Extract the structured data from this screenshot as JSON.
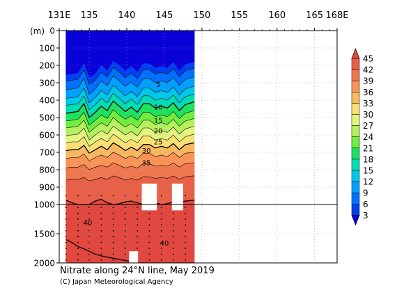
{
  "chart_data": {
    "type": "heatmap",
    "title": "Nitrate along 24°N line, May 2019",
    "credit": "(C) Japan Meteorological Agency",
    "x_axis": {
      "ticks": [
        {
          "value": 131,
          "label": "131E"
        },
        {
          "value": 135,
          "label": "135"
        },
        {
          "value": 140,
          "label": "140"
        },
        {
          "value": 145,
          "label": "145"
        },
        {
          "value": 150,
          "label": "150"
        },
        {
          "value": 155,
          "label": "155"
        },
        {
          "value": 160,
          "label": "160"
        },
        {
          "value": 165,
          "label": "165"
        },
        {
          "value": 168,
          "label": "168E"
        }
      ],
      "range": [
        131,
        168
      ]
    },
    "y_axis": {
      "unit_label": "(m)",
      "ticks_upper": [
        0,
        100,
        200,
        300,
        400,
        500,
        600,
        700,
        800,
        900,
        1000
      ],
      "ticks_lower": [
        1000,
        1500,
        2000
      ],
      "range": [
        0,
        2000
      ],
      "break_depth": 1000
    },
    "data_extent_lon": [
      131.9,
      149.0
    ],
    "colorbar": {
      "levels": [
        3,
        6,
        9,
        12,
        15,
        18,
        21,
        24,
        27,
        30,
        33,
        36,
        39,
        42,
        45
      ],
      "colors": [
        "#0a00d8",
        "#0040f0",
        "#0070ff",
        "#00a0ff",
        "#00c8e8",
        "#00ddb4",
        "#20e060",
        "#70ee40",
        "#b4f060",
        "#e4f480",
        "#fae074",
        "#f8b860",
        "#f89458",
        "#f07850",
        "#e86048",
        "#e04840"
      ]
    },
    "contour_labels": [
      {
        "value": "5",
        "lon": 144.2,
        "depth": 310
      },
      {
        "value": "10",
        "lon": 144.2,
        "depth": 440
      },
      {
        "value": "15",
        "lon": 144.2,
        "depth": 515
      },
      {
        "value": "20",
        "lon": 144.2,
        "depth": 575
      },
      {
        "value": "25",
        "lon": 144.2,
        "depth": 640
      },
      {
        "value": "30",
        "lon": 142.6,
        "depth": 690
      },
      {
        "value": "35",
        "lon": 142.6,
        "depth": 760
      },
      {
        "value": "40",
        "lon": 134.8,
        "depth": 1310
      },
      {
        "value": "40",
        "lon": 145.0,
        "depth": 1660
      }
    ],
    "isolines": [
      {
        "value": 0,
        "depths": [
          255,
          250,
          245,
          190,
          270,
          250,
          200,
          230,
          175,
          200,
          230,
          205,
          240,
          190,
          190,
          215,
          205,
          215,
          185,
          230,
          195,
          180
        ]
      },
      {
        "value": 3,
        "depths": [
          290,
          285,
          280,
          225,
          310,
          285,
          240,
          265,
          210,
          240,
          270,
          245,
          275,
          225,
          225,
          250,
          240,
          250,
          220,
          265,
          230,
          215
        ]
      },
      {
        "value": 6,
        "depths": [
          340,
          335,
          330,
          275,
          365,
          335,
          290,
          315,
          260,
          290,
          320,
          295,
          325,
          275,
          275,
          300,
          290,
          300,
          270,
          315,
          280,
          265
        ]
      },
      {
        "value": 9,
        "depths": [
          390,
          385,
          380,
          330,
          415,
          385,
          345,
          370,
          315,
          345,
          375,
          350,
          380,
          330,
          330,
          355,
          345,
          355,
          325,
          370,
          335,
          320
        ]
      },
      {
        "value": 12,
        "depths": [
          430,
          425,
          420,
          375,
          455,
          425,
          390,
          415,
          360,
          390,
          420,
          395,
          425,
          375,
          375,
          400,
          390,
          400,
          370,
          415,
          380,
          365
        ]
      },
      {
        "value": 15,
        "depths": [
          475,
          470,
          465,
          420,
          500,
          470,
          435,
          460,
          405,
          435,
          465,
          440,
          470,
          420,
          420,
          445,
          435,
          445,
          415,
          460,
          425,
          410
        ]
      },
      {
        "value": 18,
        "depths": [
          520,
          515,
          510,
          470,
          545,
          515,
          485,
          505,
          455,
          485,
          510,
          490,
          515,
          470,
          470,
          495,
          485,
          495,
          465,
          505,
          475,
          460
        ]
      },
      {
        "value": 21,
        "depths": [
          560,
          555,
          550,
          515,
          585,
          555,
          530,
          550,
          500,
          530,
          555,
          535,
          560,
          515,
          515,
          540,
          530,
          540,
          510,
          550,
          520,
          505
        ]
      },
      {
        "value": 24,
        "depths": [
          605,
          600,
          595,
          560,
          630,
          600,
          575,
          595,
          550,
          575,
          600,
          580,
          605,
          560,
          560,
          585,
          575,
          585,
          555,
          595,
          565,
          550
        ]
      },
      {
        "value": 27,
        "depths": [
          645,
          640,
          640,
          610,
          665,
          640,
          620,
          640,
          595,
          620,
          645,
          625,
          645,
          605,
          605,
          630,
          620,
          630,
          600,
          640,
          610,
          595
        ]
      },
      {
        "value": 30,
        "depths": [
          690,
          685,
          685,
          660,
          705,
          685,
          665,
          685,
          645,
          665,
          690,
          670,
          690,
          655,
          655,
          675,
          665,
          675,
          650,
          685,
          655,
          645
        ]
      },
      {
        "value": 33,
        "depths": [
          735,
          730,
          730,
          710,
          750,
          730,
          715,
          730,
          700,
          715,
          735,
          720,
          735,
          705,
          705,
          725,
          715,
          725,
          700,
          730,
          705,
          700
        ]
      },
      {
        "value": 36,
        "depths": [
          790,
          785,
          785,
          770,
          800,
          785,
          775,
          785,
          760,
          775,
          790,
          780,
          790,
          765,
          765,
          780,
          775,
          780,
          760,
          785,
          765,
          760
        ]
      },
      {
        "value": 39,
        "depths": [
          860,
          855,
          855,
          845,
          865,
          855,
          845,
          855,
          835,
          845,
          860,
          850,
          860,
          840,
          840,
          850,
          845,
          850,
          835,
          855,
          840,
          835
        ]
      },
      {
        "value": 42,
        "depths": [
          975,
          990,
          1000,
          1005,
          1000,
          980,
          970,
          990,
          1000,
          995,
          985,
          980,
          990,
          1000,
          975,
          990,
          1000,
          995,
          985,
          990,
          980,
          975
        ]
      },
      {
        "value": 45,
        "depths": [
          1600,
          1650,
          1720,
          1760,
          1800,
          1850,
          1880,
          1900,
          1920,
          1940,
          1960,
          1980,
          2000,
          2000,
          2000,
          2000,
          2000,
          2000,
          2000,
          2000,
          2000,
          2000
        ]
      }
    ],
    "isoline_lons": [
      131.9,
      132.7,
      133.5,
      134.3,
      135.0,
      135.8,
      136.6,
      137.4,
      138.2,
      139.0,
      139.8,
      140.6,
      141.4,
      142.2,
      143.0,
      143.8,
      144.6,
      145.4,
      146.2,
      147.0,
      147.8,
      149.0
    ],
    "missing_regions": [
      {
        "lon": [
          142.0,
          144.0
        ],
        "depth": [
          880,
          1100
        ]
      },
      {
        "lon": [
          146.0,
          147.5
        ],
        "depth": [
          880,
          1100
        ]
      },
      {
        "lon": [
          140.3,
          141.5
        ],
        "depth": [
          1800,
          2000
        ]
      }
    ]
  }
}
